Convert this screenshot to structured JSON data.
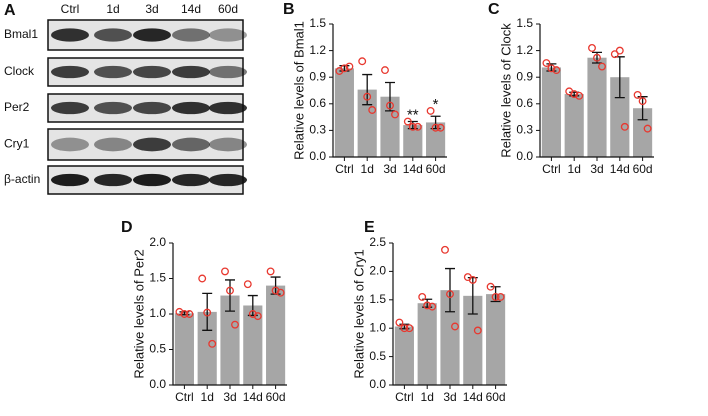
{
  "blot": {
    "label": "A",
    "lanes": [
      "Ctrl",
      "1d",
      "3d",
      "14d",
      "60d"
    ],
    "proteins": [
      "Bmal1",
      "Clock",
      "Per2",
      "Cry1",
      "β-actin"
    ]
  },
  "chart_data": [
    {
      "type": "bar",
      "label": "B",
      "ylabel": "Relative levels of Bmal1",
      "categories": [
        "Ctrl",
        "1d",
        "3d",
        "14d",
        "60d"
      ],
      "values": [
        1.0,
        0.76,
        0.68,
        0.36,
        0.39
      ],
      "errors": [
        0.03,
        0.17,
        0.16,
        0.04,
        0.07
      ],
      "points": [
        [
          0.97,
          1.0,
          1.02
        ],
        [
          1.08,
          0.68,
          0.53
        ],
        [
          0.98,
          0.58,
          0.48
        ],
        [
          0.4,
          0.34,
          0.34
        ],
        [
          0.52,
          0.33,
          0.33
        ]
      ],
      "annotations": [
        null,
        null,
        null,
        "**",
        "*"
      ],
      "color": "#a6a6a6",
      "point_color": "#e8382f",
      "ylim": [
        0,
        1.5
      ],
      "yticks": [
        {
          "value": 0,
          "label": "0.0"
        },
        0.3,
        0.6,
        0.9,
        1.2,
        1.5
      ]
    },
    {
      "type": "bar",
      "label": "C",
      "ylabel": "Relative levels of Clock",
      "categories": [
        "Ctrl",
        "1d",
        "3d",
        "14d",
        "60d"
      ],
      "values": [
        1.01,
        0.71,
        1.12,
        0.9,
        0.55
      ],
      "errors": [
        0.04,
        0.02,
        0.06,
        0.23,
        0.13
      ],
      "points": [
        [
          1.06,
          1.0,
          0.98
        ],
        [
          0.74,
          0.71,
          0.69
        ],
        [
          1.23,
          1.12,
          1.02
        ],
        [
          1.16,
          1.2,
          0.34
        ],
        [
          0.7,
          0.63,
          0.32
        ]
      ],
      "color": "#a6a6a6",
      "point_color": "#e8382f",
      "ylim": [
        0,
        1.5
      ],
      "yticks": [
        {
          "value": 0,
          "label": "0.0"
        },
        0.3,
        0.6,
        0.9,
        1.2,
        1.5
      ]
    },
    {
      "type": "bar",
      "label": "D",
      "ylabel": "Relative levels of Per2",
      "categories": [
        "Ctrl",
        "1d",
        "3d",
        "14d",
        "60d"
      ],
      "values": [
        1.01,
        1.03,
        1.26,
        1.12,
        1.4
      ],
      "errors": [
        0.02,
        0.26,
        0.22,
        0.14,
        0.12
      ],
      "points": [
        [
          1.03,
          1.0,
          1.0
        ],
        [
          1.5,
          1.02,
          0.58
        ],
        [
          1.6,
          1.33,
          0.85
        ],
        [
          1.42,
          1.0,
          0.97
        ],
        [
          1.6,
          1.33,
          1.3
        ]
      ],
      "color": "#a6a6a6",
      "point_color": "#e8382f",
      "ylim": [
        0,
        2.0
      ],
      "yticks": [
        {
          "value": 0,
          "label": "0.0"
        },
        0.5,
        {
          "value": 1.0,
          "label": "1.0"
        },
        1.5,
        {
          "value": 2.0,
          "label": "2.0"
        }
      ]
    },
    {
      "type": "bar",
      "label": "E",
      "ylabel": "Relative levels of  Cry1",
      "categories": [
        "Ctrl",
        "1d",
        "3d",
        "14d",
        "60d"
      ],
      "values": [
        1.03,
        1.44,
        1.67,
        1.57,
        1.6
      ],
      "errors": [
        0.04,
        0.07,
        0.38,
        0.32,
        0.13
      ],
      "points": [
        [
          1.1,
          1.0,
          1.0
        ],
        [
          1.55,
          1.4,
          1.38
        ],
        [
          2.38,
          1.6,
          1.03
        ],
        [
          1.9,
          1.85,
          0.96
        ],
        [
          1.73,
          1.55,
          1.55
        ]
      ],
      "color": "#a6a6a6",
      "point_color": "#e8382f",
      "ylim": [
        0,
        2.5
      ],
      "yticks": [
        {
          "value": 0,
          "label": "0.0"
        },
        0.5,
        {
          "value": 1.0,
          "label": "1.0"
        },
        1.5,
        {
          "value": 2.0,
          "label": "2.0"
        },
        2.5
      ]
    }
  ]
}
